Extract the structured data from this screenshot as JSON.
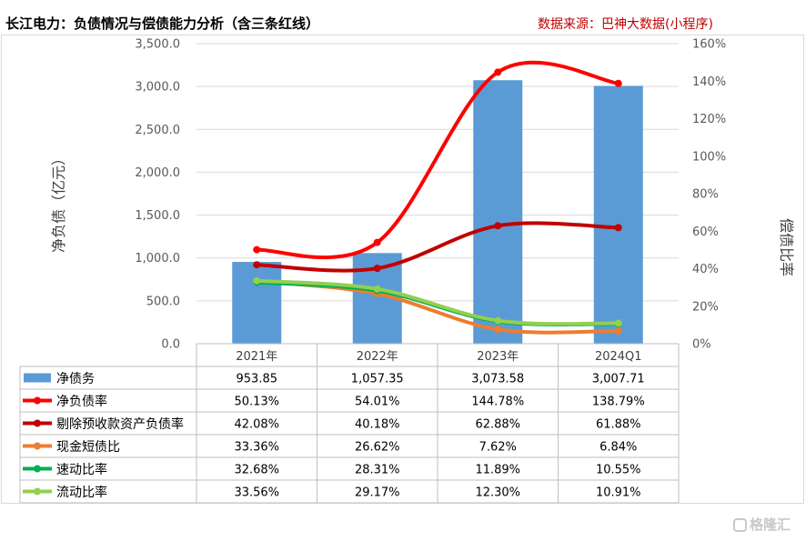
{
  "header": {
    "title": "长江电力：负债情况与偿债能力分析（含三条红线）",
    "source": "数据来源：巴神大数据(小程序)"
  },
  "watermark": "格隆汇",
  "chart_data": {
    "type": "bar",
    "categories": [
      "2021年",
      "2022年",
      "2023年",
      "2024Q1"
    ],
    "ylabel": "净负债（亿元）",
    "y2label": "偿债比率",
    "ylim": [
      0,
      3500
    ],
    "y2lim": [
      0,
      160
    ],
    "yticks": [
      "0.0",
      "500.0",
      "1,000.0",
      "1,500.0",
      "2,000.0",
      "2,500.0",
      "3,000.0",
      "3,500.0"
    ],
    "y2ticks": [
      "0%",
      "20%",
      "40%",
      "60%",
      "80%",
      "100%",
      "120%",
      "140%",
      "160%"
    ],
    "grid": true,
    "series": [
      {
        "name": "净债务",
        "type": "bar",
        "axis": "left",
        "color": "#5b9bd5",
        "values": [
          953.85,
          1057.35,
          3073.58,
          3007.71
        ],
        "labels": [
          "953.85",
          "1,057.35",
          "3,073.58",
          "3,007.71"
        ]
      },
      {
        "name": "净负债率",
        "type": "line",
        "axis": "right",
        "color": "#ff0000",
        "values": [
          50.13,
          54.01,
          144.78,
          138.79
        ],
        "labels": [
          "50.13%",
          "54.01%",
          "144.78%",
          "138.79%"
        ]
      },
      {
        "name": "剔除预收款资产负债率",
        "type": "line",
        "axis": "right",
        "color": "#c00000",
        "values": [
          42.08,
          40.18,
          62.88,
          61.88
        ],
        "labels": [
          "42.08%",
          "40.18%",
          "62.88%",
          "61.88%"
        ]
      },
      {
        "name": "现金短债比",
        "type": "line",
        "axis": "right",
        "color": "#ed7d31",
        "values": [
          33.36,
          26.62,
          7.62,
          6.84
        ],
        "labels": [
          "33.36%",
          "26.62%",
          "7.62%",
          "6.84%"
        ]
      },
      {
        "name": "速动比率",
        "type": "line",
        "axis": "right",
        "color": "#00b050",
        "values": [
          32.68,
          28.31,
          11.89,
          10.55
        ],
        "labels": [
          "32.68%",
          "28.31%",
          "11.89%",
          "10.55%"
        ]
      },
      {
        "name": "流动比率",
        "type": "line",
        "axis": "right",
        "color": "#92d050",
        "values": [
          33.56,
          29.17,
          12.3,
          10.91
        ],
        "labels": [
          "33.56%",
          "29.17%",
          "12.30%",
          "10.91%"
        ]
      }
    ]
  }
}
